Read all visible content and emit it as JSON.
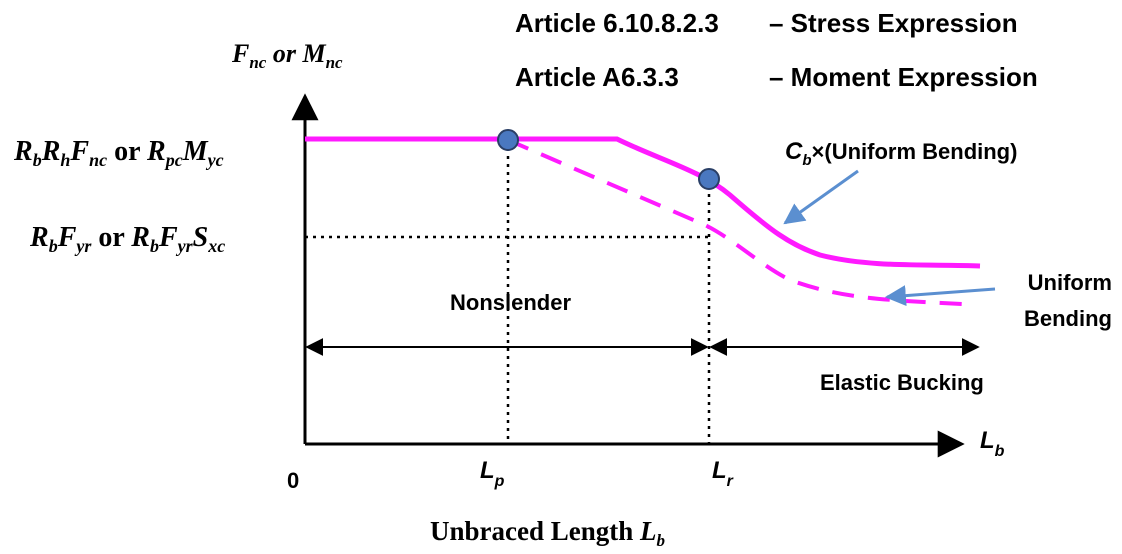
{
  "header": {
    "line1_article": "Article 6.10.8.2.3",
    "line1_desc": "– Stress Expression",
    "line2_article": "Article A6.3.3",
    "line2_desc": "– Moment Expression"
  },
  "y_axis": {
    "title": {
      "a": "F",
      "a_sub": "nc",
      "mid": " or ",
      "b": "M",
      "b_sub": "nc"
    }
  },
  "left_labels": {
    "upper": {
      "r": "R",
      "r_sub": "b",
      "r2": "R",
      "r2_sub": "h",
      "f": "F",
      "f_sub": "nc",
      "or": " or ",
      "rp": "R",
      "rp_sub": "pc",
      "m": "M",
      "m_sub": "yc"
    },
    "lower": {
      "r": "R",
      "r_sub": "b",
      "f": "F",
      "f_sub": "yr",
      "or": " or ",
      "r2": "R",
      "r2_sub": "b",
      "f2": "F",
      "f2_sub": "yr",
      "s": "S",
      "s_sub": "xc"
    }
  },
  "x_axis": {
    "origin": "0",
    "lp": {
      "main": "L",
      "sub": "p"
    },
    "lr": {
      "main": "L",
      "sub": "r"
    },
    "lb": {
      "main": "L",
      "sub": "b"
    },
    "title": {
      "text": "Unbraced Length ",
      "main": "L",
      "sub": "b"
    }
  },
  "regions": {
    "nonslender": "Nonslender",
    "elastic": "Elastic Bucking"
  },
  "curves": {
    "cb_label": {
      "c": "C",
      "c_sub": "b",
      "rest": "×(Uniform Bending)"
    },
    "uniform_label_line1": "Uniform",
    "uniform_label_line2": "Bending"
  },
  "colors": {
    "curve": "#ff1aff",
    "marker_fill": "#4a78c0",
    "marker_stroke": "#2a3f66",
    "leader": "#5b8fd0",
    "axis": "#000000"
  }
}
